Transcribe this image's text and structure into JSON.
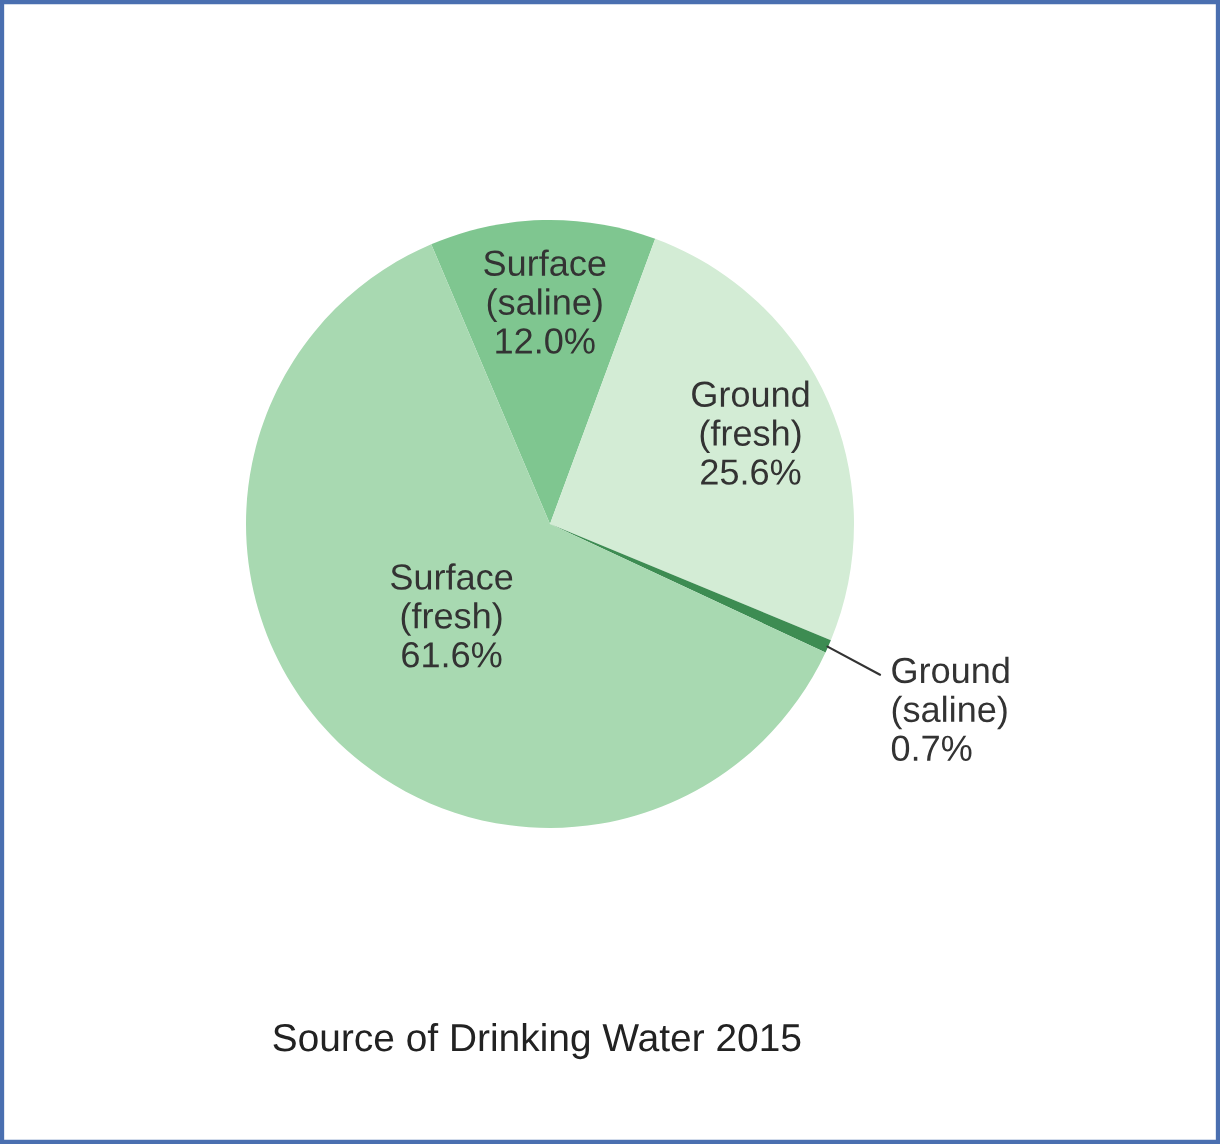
{
  "chart_data": {
    "type": "pie",
    "title": "Source of Drinking Water 2015",
    "categories": [
      "Surface (saline)",
      "Ground (fresh)",
      "Ground (saline)",
      "Surface (fresh)"
    ],
    "values": [
      12.0,
      25.6,
      0.7,
      61.6
    ],
    "value_labels": [
      "12.0%",
      "25.6%",
      "0.7%",
      "61.6%"
    ],
    "colors": [
      "#7fc690",
      "#d3ecd5",
      "#3d8c52",
      "#a8d9b1"
    ]
  }
}
